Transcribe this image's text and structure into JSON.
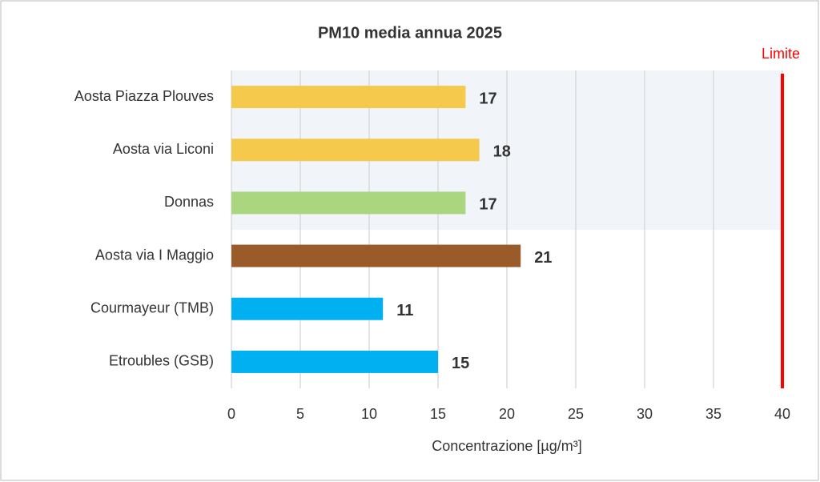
{
  "chart_data": {
    "type": "barh",
    "title": "PM10 media annua 2025",
    "categories": [
      "Aosta Piazza Plouves",
      "Aosta via Liconi",
      "Donnas",
      "Aosta via I Maggio",
      "Courmayeur (TMB)",
      "Etroubles (GSB)"
    ],
    "values": [
      17,
      18,
      17,
      21,
      11,
      15
    ],
    "colors": [
      "#f5c94c",
      "#f5c94c",
      "#a9d67f",
      "#9a5b2b",
      "#00b0f0",
      "#00b0f0"
    ],
    "xlim": [
      0,
      40
    ],
    "xticks": [
      0,
      5,
      10,
      15,
      20,
      25,
      30,
      35,
      40
    ],
    "grid": true,
    "xlabel": "Concentrazione [µg/m³]",
    "limit": {
      "value": 40,
      "label": "Limite",
      "color": "#ff0000"
    }
  }
}
